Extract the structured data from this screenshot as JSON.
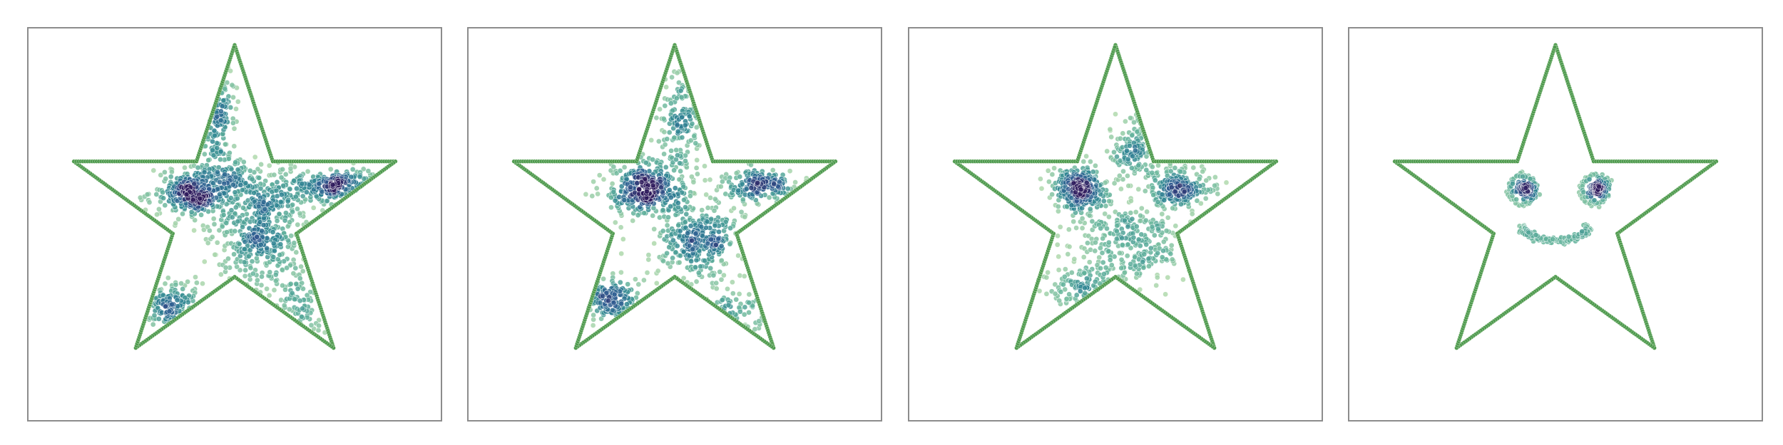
{
  "chart_data": [
    {
      "type": "scatter",
      "title": "",
      "xlabel": "",
      "ylabel": "",
      "xlim": [
        -1.0,
        1.0
      ],
      "ylim": [
        -1.0,
        0.9
      ],
      "grid": false,
      "boundary": {
        "shape": "five-point star",
        "color": "#4f9a4f",
        "vertices": [
          [
            0,
            0.82
          ],
          [
            0.185,
            0.255
          ],
          [
            0.78,
            0.255
          ],
          [
            0.3,
            -0.095
          ],
          [
            0.48,
            -0.65
          ],
          [
            0,
            -0.305
          ],
          [
            -0.48,
            -0.65
          ],
          [
            -0.3,
            -0.095
          ],
          [
            -0.78,
            0.255
          ],
          [
            -0.185,
            0.255
          ]
        ]
      },
      "colormap": [
        "#2e1a5c",
        "#2f5d92",
        "#2e8592",
        "#65b49c",
        "#b6dcae"
      ],
      "series": [
        {
          "clusters": [
            {
              "cx": -0.1,
              "cy": 0.52,
              "sx": 0.05,
              "sy": 0.16,
              "n": 160
            },
            {
              "cx": -0.2,
              "cy": 0.1,
              "sx": 0.1,
              "sy": 0.06,
              "n": 320
            },
            {
              "cx": 0.52,
              "cy": 0.14,
              "sx": 0.1,
              "sy": 0.04,
              "n": 200
            },
            {
              "cx": 0.12,
              "cy": -0.12,
              "sx": 0.12,
              "sy": 0.12,
              "n": 360
            },
            {
              "cx": 0.2,
              "cy": 0.1,
              "sx": 0.12,
              "sy": 0.07,
              "n": 150
            },
            {
              "cx": -0.3,
              "cy": -0.45,
              "sx": 0.08,
              "sy": 0.06,
              "n": 130
            },
            {
              "cx": 0.3,
              "cy": -0.45,
              "sx": 0.07,
              "sy": 0.08,
              "n": 80
            },
            {
              "cx": -0.02,
              "cy": 0.2,
              "sx": 0.06,
              "sy": 0.05,
              "n": 70
            }
          ]
        }
      ]
    },
    {
      "type": "scatter",
      "title": "",
      "xlabel": "",
      "ylabel": "",
      "xlim": [
        -1.0,
        1.0
      ],
      "ylim": [
        -1.0,
        0.9
      ],
      "grid": false,
      "boundary": {
        "shape": "five-point star",
        "color": "#4f9a4f",
        "vertices": [
          [
            0,
            0.82
          ],
          [
            0.185,
            0.255
          ],
          [
            0.78,
            0.255
          ],
          [
            0.3,
            -0.095
          ],
          [
            0.48,
            -0.65
          ],
          [
            0,
            -0.305
          ],
          [
            -0.48,
            -0.65
          ],
          [
            -0.3,
            -0.095
          ],
          [
            -0.78,
            0.255
          ],
          [
            -0.185,
            0.255
          ]
        ]
      },
      "colormap": [
        "#2e1a5c",
        "#2f5d92",
        "#2e8592",
        "#65b49c",
        "#b6dcae"
      ],
      "series": [
        {
          "clusters": [
            {
              "cx": -0.14,
              "cy": 0.13,
              "sx": 0.1,
              "sy": 0.07,
              "n": 340
            },
            {
              "cx": 0.42,
              "cy": 0.14,
              "sx": 0.1,
              "sy": 0.04,
              "n": 170
            },
            {
              "cx": 0.12,
              "cy": -0.13,
              "sx": 0.11,
              "sy": 0.1,
              "n": 320
            },
            {
              "cx": 0.02,
              "cy": 0.45,
              "sx": 0.05,
              "sy": 0.13,
              "n": 140
            },
            {
              "cx": -0.33,
              "cy": -0.42,
              "sx": 0.08,
              "sy": 0.06,
              "n": 140
            },
            {
              "cx": 0.3,
              "cy": -0.48,
              "sx": 0.07,
              "sy": 0.07,
              "n": 60
            }
          ]
        }
      ]
    },
    {
      "type": "scatter",
      "title": "",
      "xlabel": "",
      "ylabel": "",
      "xlim": [
        -1.0,
        1.0
      ],
      "ylim": [
        -1.0,
        0.9
      ],
      "grid": false,
      "boundary": {
        "shape": "five-point star",
        "color": "#4f9a4f",
        "vertices": [
          [
            0,
            0.82
          ],
          [
            0.185,
            0.255
          ],
          [
            0.78,
            0.255
          ],
          [
            0.3,
            -0.095
          ],
          [
            0.48,
            -0.65
          ],
          [
            0,
            -0.305
          ],
          [
            -0.48,
            -0.65
          ],
          [
            -0.3,
            -0.095
          ],
          [
            -0.78,
            0.255
          ],
          [
            -0.185,
            0.255
          ]
        ]
      },
      "colormap": [
        "#2e1a5c",
        "#2f5d92",
        "#2e8592",
        "#65b49c",
        "#b6dcae"
      ],
      "series": [
        {
          "clusters": [
            {
              "cx": -0.17,
              "cy": 0.12,
              "sx": 0.07,
              "sy": 0.06,
              "n": 280
            },
            {
              "cx": 0.3,
              "cy": 0.12,
              "sx": 0.09,
              "sy": 0.06,
              "n": 220
            },
            {
              "cx": 0.1,
              "cy": 0.32,
              "sx": 0.06,
              "sy": 0.08,
              "n": 120
            },
            {
              "cx": 0.06,
              "cy": -0.15,
              "sx": 0.15,
              "sy": 0.1,
              "n": 280
            },
            {
              "cx": -0.15,
              "cy": -0.35,
              "sx": 0.1,
              "sy": 0.05,
              "n": 100
            }
          ]
        }
      ]
    },
    {
      "type": "scatter",
      "title": "",
      "xlabel": "",
      "ylabel": "",
      "xlim": [
        -1.0,
        1.0
      ],
      "ylim": [
        -1.0,
        0.9
      ],
      "grid": false,
      "boundary": {
        "shape": "five-point star",
        "color": "#4f9a4f",
        "vertices": [
          [
            0,
            0.82
          ],
          [
            0.185,
            0.255
          ],
          [
            0.78,
            0.255
          ],
          [
            0.3,
            -0.095
          ],
          [
            0.48,
            -0.65
          ],
          [
            0,
            -0.305
          ],
          [
            -0.48,
            -0.65
          ],
          [
            -0.3,
            -0.095
          ],
          [
            -0.78,
            0.255
          ],
          [
            -0.185,
            0.255
          ]
        ]
      },
      "colormap": [
        "#2e1a5c",
        "#2f5d92",
        "#2e8592",
        "#65b49c",
        "#b6dcae"
      ],
      "series": [
        {
          "clusters": [
            {
              "cx": -0.15,
              "cy": 0.12,
              "sx": 0.02,
              "sy": 0.02,
              "n": 90
            },
            {
              "cx": 0.2,
              "cy": 0.12,
              "sx": 0.02,
              "sy": 0.02,
              "n": 90
            }
          ],
          "rings": [
            {
              "cx": -0.16,
              "cy": 0.12,
              "r": 0.065,
              "n": 60
            },
            {
              "cx": 0.19,
              "cy": 0.12,
              "r": 0.065,
              "n": 60
            }
          ],
          "arcs": [
            {
              "cx": 0.0,
              "cy": -0.03,
              "rx": 0.17,
              "ry": 0.1,
              "start_deg": 195,
              "end_deg": 345,
              "n": 110
            }
          ]
        }
      ]
    }
  ]
}
